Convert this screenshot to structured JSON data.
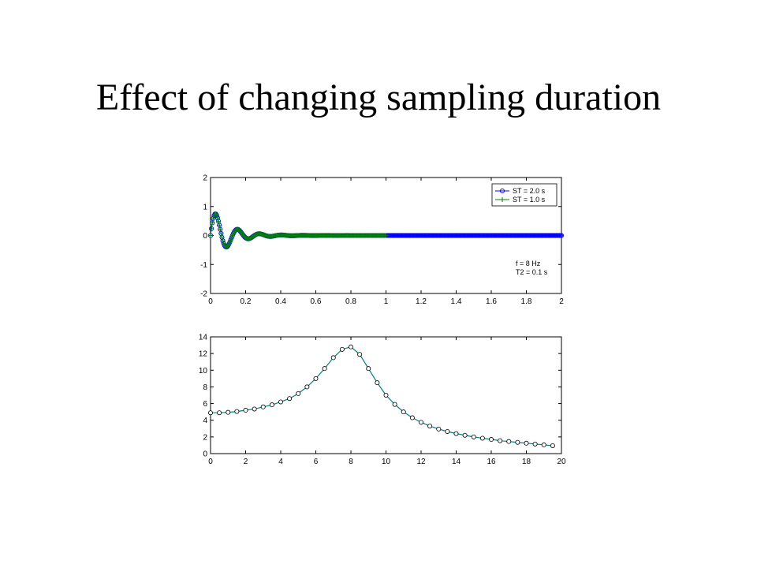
{
  "slide": {
    "title": "Effect of changing sampling duration"
  },
  "chart_data": [
    {
      "type": "line",
      "xlim": [
        0,
        2
      ],
      "ylim": [
        -2,
        2
      ],
      "xticks": [
        "0",
        "0.2",
        "0.4",
        "0.6",
        "0.8",
        "1",
        "1.2",
        "1.4",
        "1.6",
        "1.8",
        "2"
      ],
      "yticks": [
        "-2",
        "-1",
        "0",
        "1",
        "2"
      ],
      "grid": false,
      "legend_position": "top-right",
      "series": [
        {
          "name": "ST = 2.0 s",
          "color": "#0000ff",
          "marker": "circle",
          "t_start": 0,
          "t_end": 2.0,
          "dt": 0.005,
          "frequency_hz": 8,
          "decay_time_s": 0.1,
          "amplitude": 1
        },
        {
          "name": "ST = 1.0 s",
          "color": "#008000",
          "marker": "plus",
          "t_start": 0,
          "t_end": 1.0,
          "dt": 0.005,
          "frequency_hz": 8,
          "decay_time_s": 0.1,
          "amplitude": 1
        }
      ],
      "annotations": [
        "f = 8 Hz",
        "T2 = 0.1 s"
      ]
    },
    {
      "type": "line",
      "xlim": [
        0,
        20
      ],
      "ylim": [
        0,
        14
      ],
      "xticks": [
        "0",
        "2",
        "4",
        "6",
        "8",
        "10",
        "12",
        "14",
        "16",
        "18",
        "20"
      ],
      "yticks": [
        "0",
        "2",
        "4",
        "6",
        "8",
        "10",
        "12",
        "14"
      ],
      "grid": false,
      "series": [
        {
          "color": "#008080",
          "marker": "circle",
          "x": [
            0,
            0.5,
            1,
            1.5,
            2,
            2.5,
            3,
            3.5,
            4,
            4.5,
            5,
            5.5,
            6,
            6.5,
            7,
            7.5,
            8,
            8.5,
            9,
            9.5,
            10,
            10.5,
            11,
            11.5,
            12,
            12.5,
            13,
            13.5,
            14,
            14.5,
            15,
            15.5,
            16,
            16.5,
            17,
            17.5,
            18,
            18.5,
            19,
            19.5
          ],
          "y": [
            4.9,
            4.9,
            4.95,
            5.05,
            5.2,
            5.35,
            5.6,
            5.85,
            6.2,
            6.6,
            7.2,
            8.0,
            9.0,
            10.2,
            11.5,
            12.5,
            12.8,
            11.9,
            10.2,
            8.5,
            7.0,
            5.9,
            5.0,
            4.3,
            3.75,
            3.3,
            2.95,
            2.65,
            2.4,
            2.2,
            2.0,
            1.85,
            1.7,
            1.55,
            1.45,
            1.35,
            1.25,
            1.15,
            1.05,
            0.95
          ]
        }
      ]
    }
  ]
}
